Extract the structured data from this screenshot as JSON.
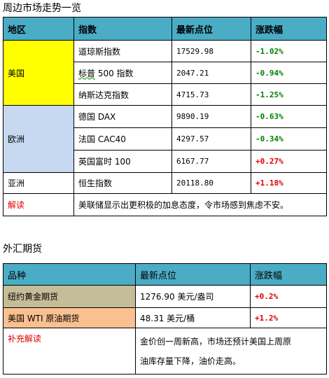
{
  "section1": {
    "title": "周边市场走势一览",
    "headers": [
      "地区",
      "指数",
      "最新点位",
      "涨跌幅"
    ],
    "regions": {
      "us": "美国",
      "europe": "欧洲",
      "asia": "亚洲"
    },
    "rows": [
      {
        "index": "道琼斯指数",
        "value": "17529.98",
        "change": "-1.02%"
      },
      {
        "index_prefix": "标普",
        "index_suffix": " 500 指数",
        "value": "2047.21",
        "change": "-0.94%"
      },
      {
        "index": "纳斯达克指数",
        "value": "4715.73",
        "change": "-1.25%"
      },
      {
        "index": "德国 DAX",
        "value": "9890.19",
        "change": "-0.63%"
      },
      {
        "index": "法国 CAC40",
        "value": "4297.57",
        "change": "-0.34%"
      },
      {
        "index": "英国富时 100",
        "value": "6167.77",
        "change": "+0.27%"
      },
      {
        "index": "恒生指数",
        "value": "20118.80",
        "change": "+1.18%"
      }
    ],
    "note_label": "解读",
    "note_text": "美联储显示出更积极的加息态度，令市场感到焦虑不安。"
  },
  "section2": {
    "title": "外汇期货",
    "headers": [
      "品种",
      "最新点位",
      "涨跌幅"
    ],
    "rows": [
      {
        "name": "纽约黄金期货",
        "value": "1276.90 美元/盎司",
        "change": "+0.2%"
      },
      {
        "name": "美国 WTI 原油期货",
        "value": "48.31 美元/桶",
        "change": "+1.2%"
      }
    ],
    "note_label": "补充解读",
    "note_line1": "金价创一周新高，市场还预计美国上周原",
    "note_line2": "油库存量下降，油价走高。"
  },
  "colors": {
    "header": "#4bacc6",
    "us_region": "#ffff00",
    "europe_region": "#c6d9f1",
    "gold_row": "#c4bd97",
    "oil_row": "#fac090",
    "positive": "#e00000",
    "negative": "#008000"
  }
}
